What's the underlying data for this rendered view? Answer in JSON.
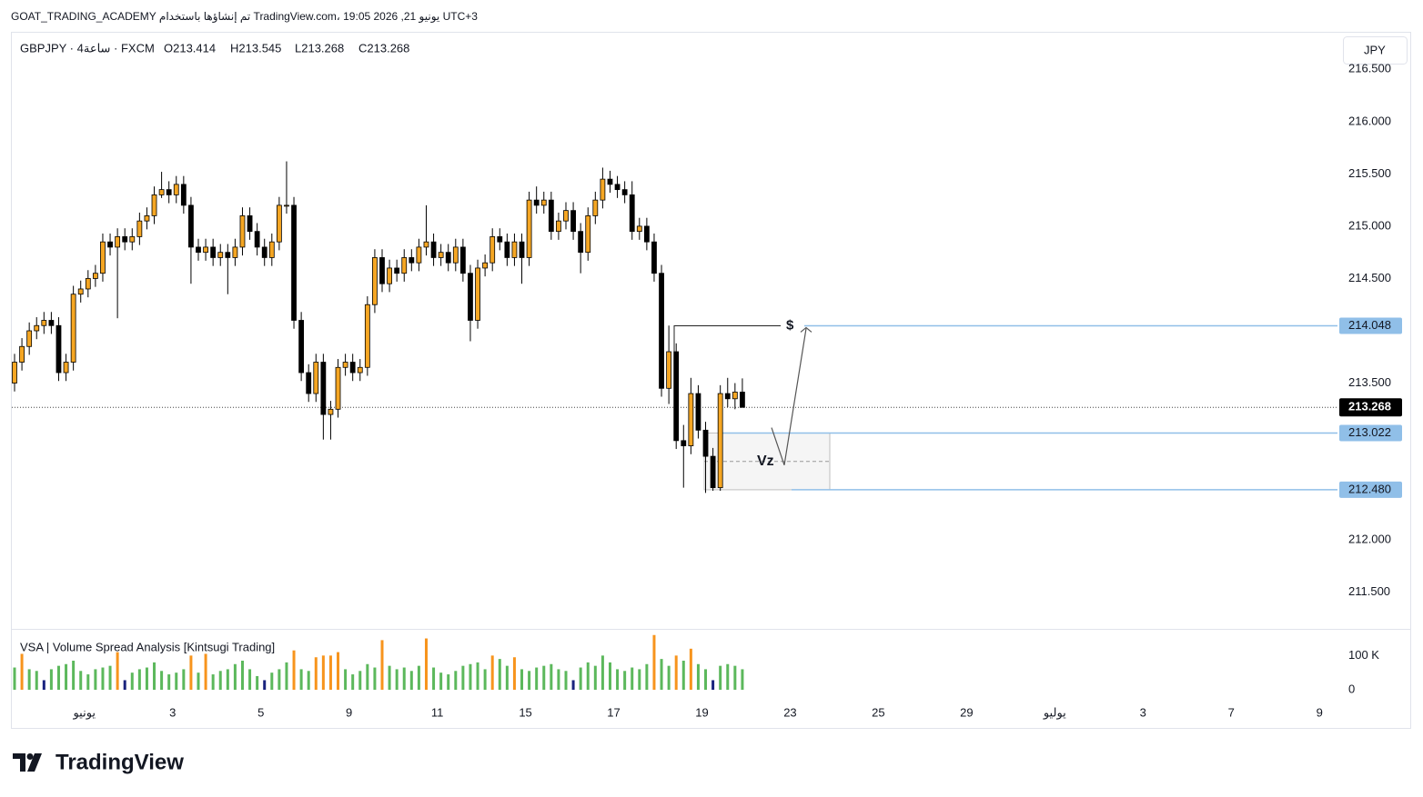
{
  "header": "GOAT_TRADING_ACADEMY تم إنشاؤها باستخدام TradingView.com، 19:05 2026 ,21 يونيو UTC+3",
  "symbol": "GBPJPY · 4ساعة · FXCM",
  "ohlc": [
    "O213.414",
    "H213.545",
    "L213.268",
    "C213.268"
  ],
  "currency": "JPY",
  "indicator": "VSA | Volume Spread Analysis [Kintsugi Trading]",
  "footer_brand": "TradingView",
  "chart_data": {
    "type": "candlestick",
    "up_color": "#f5a623",
    "down_color": "#000000",
    "ylim": [
      211.15,
      216.85
    ],
    "yticks": [
      {
        "value": 216.5,
        "label": "216.500"
      },
      {
        "value": 216.0,
        "label": "216.000"
      },
      {
        "value": 215.5,
        "label": "215.500"
      },
      {
        "value": 215.0,
        "label": "215.000"
      },
      {
        "value": 214.5,
        "label": "214.500"
      },
      {
        "value": 213.5,
        "label": "213.500"
      },
      {
        "value": 212.0,
        "label": "212.000"
      },
      {
        "value": 211.5,
        "label": "211.500"
      }
    ],
    "xticks": [
      {
        "value": 9.5,
        "label": "يونيو"
      },
      {
        "value": 21.5,
        "label": "3"
      },
      {
        "value": 33.5,
        "label": "5"
      },
      {
        "value": 45.5,
        "label": "9"
      },
      {
        "value": 57.5,
        "label": "11"
      },
      {
        "value": 69.5,
        "label": "15"
      },
      {
        "value": 81.5,
        "label": "17"
      },
      {
        "value": 93.5,
        "label": "19"
      },
      {
        "value": 105.5,
        "label": "23"
      },
      {
        "value": 117.5,
        "label": "25"
      },
      {
        "value": 129.5,
        "label": "29"
      },
      {
        "value": 141.5,
        "label": "يوليو"
      },
      {
        "value": 153.5,
        "label": "3"
      },
      {
        "value": 165.5,
        "label": "7"
      },
      {
        "value": 177.5,
        "label": "9"
      }
    ],
    "grid": false,
    "current_price": {
      "value": 213.268,
      "label": "213.268"
    },
    "levels": [
      {
        "value": 214.048,
        "label": "214.048",
        "color": "#90bfe8"
      },
      {
        "value": 213.022,
        "label": "213.022",
        "color": "#90bfe8"
      },
      {
        "value": 212.48,
        "label": "212.480",
        "color": "#90bfe8"
      }
    ],
    "annotations": [
      "$",
      "Vz"
    ],
    "candles": [
      [
        213.5,
        213.78,
        213.42,
        213.7
      ],
      [
        213.7,
        213.93,
        213.62,
        213.85
      ],
      [
        213.85,
        214.08,
        213.77,
        214.0
      ],
      [
        214.0,
        214.13,
        213.92,
        214.05
      ],
      [
        214.05,
        214.18,
        213.97,
        214.1
      ],
      [
        214.1,
        214.18,
        213.97,
        214.05
      ],
      [
        214.05,
        214.13,
        213.52,
        213.6
      ],
      [
        213.6,
        213.78,
        213.52,
        213.7
      ],
      [
        213.7,
        214.43,
        213.62,
        214.35
      ],
      [
        214.35,
        214.48,
        214.27,
        214.4
      ],
      [
        214.4,
        214.58,
        214.32,
        214.5
      ],
      [
        214.5,
        214.63,
        214.42,
        214.55
      ],
      [
        214.55,
        214.93,
        214.47,
        214.85
      ],
      [
        214.85,
        214.93,
        214.72,
        214.8
      ],
      [
        214.8,
        214.98,
        214.12,
        214.9
      ],
      [
        214.9,
        214.98,
        214.77,
        214.85
      ],
      [
        214.85,
        214.98,
        214.77,
        214.9
      ],
      [
        214.9,
        215.13,
        214.82,
        215.05
      ],
      [
        215.05,
        215.18,
        214.97,
        215.1
      ],
      [
        215.1,
        215.38,
        215.02,
        215.3
      ],
      [
        215.3,
        215.52,
        215.27,
        215.35
      ],
      [
        215.35,
        215.43,
        215.22,
        215.3
      ],
      [
        215.3,
        215.48,
        215.22,
        215.4
      ],
      [
        215.4,
        215.48,
        215.12,
        215.2
      ],
      [
        215.2,
        215.28,
        214.45,
        214.8
      ],
      [
        214.8,
        214.88,
        214.67,
        214.75
      ],
      [
        214.75,
        214.88,
        214.67,
        214.8
      ],
      [
        214.8,
        214.88,
        214.62,
        214.7
      ],
      [
        214.7,
        214.83,
        214.62,
        214.75
      ],
      [
        214.75,
        214.83,
        214.35,
        214.7
      ],
      [
        214.7,
        214.88,
        214.62,
        214.8
      ],
      [
        214.8,
        215.18,
        214.72,
        215.1
      ],
      [
        215.1,
        215.18,
        214.87,
        214.95
      ],
      [
        214.95,
        215.03,
        214.72,
        214.8
      ],
      [
        214.8,
        214.88,
        214.62,
        214.7
      ],
      [
        214.7,
        214.93,
        214.62,
        214.85
      ],
      [
        214.85,
        215.28,
        214.77,
        215.2
      ],
      [
        215.2,
        215.62,
        215.12,
        215.2
      ],
      [
        215.2,
        215.28,
        214.02,
        214.1
      ],
      [
        214.1,
        214.18,
        213.52,
        213.6
      ],
      [
        213.6,
        213.68,
        213.32,
        213.4
      ],
      [
        213.4,
        213.78,
        213.32,
        213.7
      ],
      [
        213.7,
        213.78,
        212.96,
        213.2
      ],
      [
        213.2,
        213.33,
        212.96,
        213.25
      ],
      [
        213.25,
        213.73,
        213.17,
        213.65
      ],
      [
        213.65,
        213.78,
        213.57,
        213.7
      ],
      [
        213.7,
        213.78,
        213.52,
        213.6
      ],
      [
        213.6,
        213.73,
        213.52,
        213.65
      ],
      [
        213.65,
        214.33,
        213.57,
        214.25
      ],
      [
        214.25,
        214.78,
        214.17,
        214.7
      ],
      [
        214.7,
        214.78,
        214.37,
        214.45
      ],
      [
        214.45,
        214.68,
        214.37,
        214.6
      ],
      [
        214.6,
        214.68,
        214.47,
        214.55
      ],
      [
        214.55,
        214.78,
        214.47,
        214.7
      ],
      [
        214.7,
        214.78,
        214.57,
        214.65
      ],
      [
        214.65,
        214.88,
        214.57,
        214.8
      ],
      [
        214.8,
        215.2,
        214.72,
        214.85
      ],
      [
        214.85,
        214.93,
        214.62,
        214.7
      ],
      [
        214.7,
        214.83,
        214.62,
        214.75
      ],
      [
        214.75,
        214.83,
        214.57,
        214.65
      ],
      [
        214.65,
        214.88,
        214.57,
        214.8
      ],
      [
        214.8,
        214.88,
        214.47,
        214.55
      ],
      [
        214.55,
        214.63,
        213.9,
        214.1
      ],
      [
        214.1,
        214.68,
        214.02,
        214.6
      ],
      [
        214.6,
        214.73,
        214.52,
        214.65
      ],
      [
        214.65,
        214.98,
        214.57,
        214.9
      ],
      [
        214.9,
        214.98,
        214.77,
        214.85
      ],
      [
        214.85,
        214.93,
        214.62,
        214.7
      ],
      [
        214.7,
        214.93,
        214.62,
        214.85
      ],
      [
        214.85,
        214.93,
        214.45,
        214.7
      ],
      [
        214.7,
        215.33,
        214.62,
        215.25
      ],
      [
        215.25,
        215.38,
        215.12,
        215.2
      ],
      [
        215.2,
        215.33,
        215.12,
        215.25
      ],
      [
        215.25,
        215.33,
        214.87,
        214.95
      ],
      [
        214.95,
        215.13,
        214.87,
        215.05
      ],
      [
        215.05,
        215.23,
        214.97,
        215.15
      ],
      [
        215.15,
        215.23,
        214.87,
        214.95
      ],
      [
        214.95,
        215.03,
        214.55,
        214.75
      ],
      [
        214.75,
        215.18,
        214.67,
        215.1
      ],
      [
        215.1,
        215.33,
        215.02,
        215.25
      ],
      [
        215.25,
        215.56,
        215.17,
        215.45
      ],
      [
        215.45,
        215.53,
        215.32,
        215.4
      ],
      [
        215.4,
        215.48,
        215.27,
        215.35
      ],
      [
        215.35,
        215.43,
        215.22,
        215.3
      ],
      [
        215.3,
        215.43,
        214.87,
        214.95
      ],
      [
        214.95,
        215.08,
        214.87,
        215.0
      ],
      [
        215.0,
        215.08,
        214.77,
        214.85
      ],
      [
        214.85,
        214.93,
        214.47,
        214.55
      ],
      [
        214.55,
        214.63,
        213.37,
        213.45
      ],
      [
        213.45,
        214.05,
        213.3,
        213.8
      ],
      [
        213.8,
        213.88,
        212.87,
        212.95
      ],
      [
        212.95,
        213.1,
        212.5,
        212.9
      ],
      [
        212.9,
        213.55,
        212.82,
        213.4
      ],
      [
        213.4,
        213.48,
        212.97,
        213.05
      ],
      [
        213.05,
        213.13,
        212.45,
        212.8
      ],
      [
        212.8,
        212.88,
        212.47,
        212.5
      ],
      [
        212.5,
        213.48,
        212.47,
        213.4
      ],
      [
        213.4,
        213.55,
        213.27,
        213.35
      ],
      [
        213.35,
        213.5,
        213.25,
        213.414
      ],
      [
        213.414,
        213.545,
        213.268,
        213.268
      ]
    ],
    "volume": {
      "ylim": [
        0,
        170000
      ],
      "yticks": [
        {
          "value": 100000,
          "label": "100 K"
        },
        0
      ],
      "values": [
        65000,
        105000,
        60000,
        55000,
        28000,
        60000,
        70000,
        75000,
        85000,
        55000,
        45000,
        60000,
        65000,
        70000,
        110000,
        28000,
        50000,
        60000,
        65000,
        80000,
        55000,
        45000,
        50000,
        60000,
        100000,
        50000,
        105000,
        45000,
        55000,
        60000,
        75000,
        85000,
        60000,
        40000,
        28000,
        50000,
        60000,
        80000,
        115000,
        60000,
        55000,
        95000,
        100000,
        100000,
        110000,
        60000,
        45000,
        55000,
        75000,
        65000,
        145000,
        70000,
        60000,
        65000,
        55000,
        70000,
        150000,
        65000,
        50000,
        45000,
        55000,
        70000,
        75000,
        80000,
        60000,
        100000,
        90000,
        70000,
        95000,
        60000,
        55000,
        65000,
        70000,
        75000,
        60000,
        55000,
        28000,
        65000,
        80000,
        70000,
        100000,
        80000,
        60000,
        55000,
        65000,
        60000,
        75000,
        160000,
        90000,
        70000,
        100000,
        85000,
        120000,
        75000,
        60000,
        28000,
        70000,
        75000,
        70000,
        60000
      ],
      "colors": [
        "#5cb85c",
        "#f7941d",
        "#5cb85c",
        "#5cb85c",
        "#1a237e",
        "#5cb85c",
        "#5cb85c",
        "#5cb85c",
        "#5cb85c",
        "#5cb85c",
        "#5cb85c",
        "#5cb85c",
        "#5cb85c",
        "#5cb85c",
        "#f7941d",
        "#1a237e",
        "#5cb85c",
        "#5cb85c",
        "#5cb85c",
        "#5cb85c",
        "#5cb85c",
        "#5cb85c",
        "#5cb85c",
        "#5cb85c",
        "#f7941d",
        "#5cb85c",
        "#f7941d",
        "#5cb85c",
        "#5cb85c",
        "#5cb85c",
        "#5cb85c",
        "#5cb85c",
        "#5cb85c",
        "#5cb85c",
        "#1a237e",
        "#5cb85c",
        "#5cb85c",
        "#5cb85c",
        "#f7941d",
        "#5cb85c",
        "#5cb85c",
        "#f7941d",
        "#f7941d",
        "#f7941d",
        "#f7941d",
        "#5cb85c",
        "#5cb85c",
        "#5cb85c",
        "#5cb85c",
        "#5cb85c",
        "#f7941d",
        "#5cb85c",
        "#5cb85c",
        "#5cb85c",
        "#5cb85c",
        "#5cb85c",
        "#f7941d",
        "#5cb85c",
        "#5cb85c",
        "#5cb85c",
        "#5cb85c",
        "#5cb85c",
        "#5cb85c",
        "#5cb85c",
        "#5cb85c",
        "#f7941d",
        "#5cb85c",
        "#5cb85c",
        "#f7941d",
        "#5cb85c",
        "#5cb85c",
        "#5cb85c",
        "#5cb85c",
        "#5cb85c",
        "#5cb85c",
        "#5cb85c",
        "#1a237e",
        "#5cb85c",
        "#5cb85c",
        "#5cb85c",
        "#5cb85c",
        "#5cb85c",
        "#5cb85c",
        "#5cb85c",
        "#5cb85c",
        "#5cb85c",
        "#5cb85c",
        "#f7941d",
        "#5cb85c",
        "#5cb85c",
        "#f7941d",
        "#5cb85c",
        "#f7941d",
        "#5cb85c",
        "#5cb85c",
        "#1a237e",
        "#5cb85c",
        "#5cb85c",
        "#5cb85c",
        "#5cb85c"
      ]
    }
  }
}
